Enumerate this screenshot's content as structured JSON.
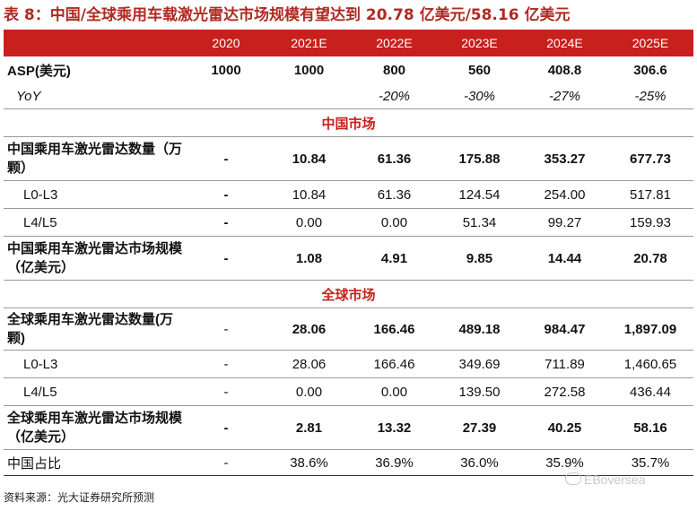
{
  "title": "表 8：中国/全球乘用车载激光雷达市场规模有望达到 20.78 亿美元/58.16 亿美元",
  "header": [
    "",
    "2020",
    "2021E",
    "2022E",
    "2023E",
    "2024E",
    "2025E"
  ],
  "rows": {
    "asp": [
      "ASP(美元)",
      "1000",
      "1000",
      "800",
      "560",
      "408.8",
      "306.6"
    ],
    "yoy": [
      "YoY",
      "",
      "",
      "-20%",
      "-30%",
      "-27%",
      "-25%"
    ],
    "china_section": "中国市场",
    "cn_qty": [
      "中国乘用车激光雷达数量（万颗）",
      "-",
      "10.84",
      "61.36",
      "175.88",
      "353.27",
      "677.73"
    ],
    "cn_l03": [
      "L0-L3",
      "-",
      "10.84",
      "61.36",
      "124.54",
      "254.00",
      "517.81"
    ],
    "cn_l45": [
      "L4/L5",
      "-",
      "0.00",
      "0.00",
      "51.34",
      "99.27",
      "159.93"
    ],
    "cn_mkt": [
      "中国乘用车激光雷达市场规模（亿美元）",
      "-",
      "1.08",
      "4.91",
      "9.85",
      "14.44",
      "20.78"
    ],
    "global_section": "全球市场",
    "gl_qty": [
      "全球乘用车激光雷达数量(万颗)",
      "-",
      "28.06",
      "166.46",
      "489.18",
      "984.47",
      "1,897.09"
    ],
    "gl_l03": [
      "L0-L3",
      "-",
      "28.06",
      "166.46",
      "349.69",
      "711.89",
      "1,460.65"
    ],
    "gl_l45": [
      "L4/L5",
      "-",
      "0.00",
      "0.00",
      "139.50",
      "272.58",
      "436.44"
    ],
    "gl_mkt": [
      "全球乘用车激光雷达市场规模（亿美元）",
      "-",
      "2.81",
      "13.32",
      "27.39",
      "40.25",
      "58.16"
    ],
    "cn_share": [
      "中国占比",
      "-",
      "38.6%",
      "36.9%",
      "36.0%",
      "35.9%",
      "35.7%"
    ]
  },
  "source": "资料来源：光大证券研究所预测",
  "watermark": "EBoversea",
  "watermark_icon": "wechat-icon",
  "colors": {
    "accent": "#c8201d",
    "title": "#b02b22"
  }
}
